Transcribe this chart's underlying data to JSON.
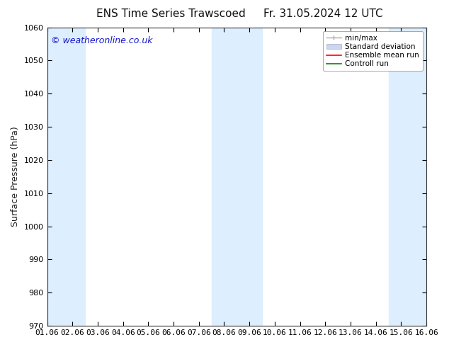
{
  "title_left": "ENS Time Series Trawscoed",
  "title_right": "Fr. 31.05.2024 12 UTC",
  "ylabel": "Surface Pressure (hPa)",
  "xlabel": "",
  "watermark": "© weatheronline.co.uk",
  "watermark_color": "#1515cc",
  "ylim": [
    970,
    1060
  ],
  "yticks": [
    970,
    980,
    990,
    1000,
    1010,
    1020,
    1030,
    1040,
    1050,
    1060
  ],
  "xtick_labels": [
    "01.06",
    "02.06",
    "03.06",
    "04.06",
    "05.06",
    "06.06",
    "07.06",
    "08.06",
    "09.06",
    "10.06",
    "11.06",
    "12.06",
    "13.06",
    "14.06",
    "15.06",
    "16.06"
  ],
  "background_color": "#ffffff",
  "plot_bg_color": "#ffffff",
  "shaded_band_color": "#ddeeff",
  "shaded_columns": [
    0,
    1,
    7,
    8,
    14,
    15
  ],
  "legend_items": [
    {
      "label": "min/max",
      "color": "#aaaaaa",
      "type": "errorbar"
    },
    {
      "label": "Standard deviation",
      "color": "#c8d8ee",
      "type": "band"
    },
    {
      "label": "Ensemble mean run",
      "color": "#ff0000",
      "type": "line"
    },
    {
      "label": "Controll run",
      "color": "#008800",
      "type": "line"
    }
  ],
  "title_fontsize": 11,
  "tick_fontsize": 8,
  "ylabel_fontsize": 9,
  "watermark_fontsize": 9,
  "legend_fontsize": 7.5
}
